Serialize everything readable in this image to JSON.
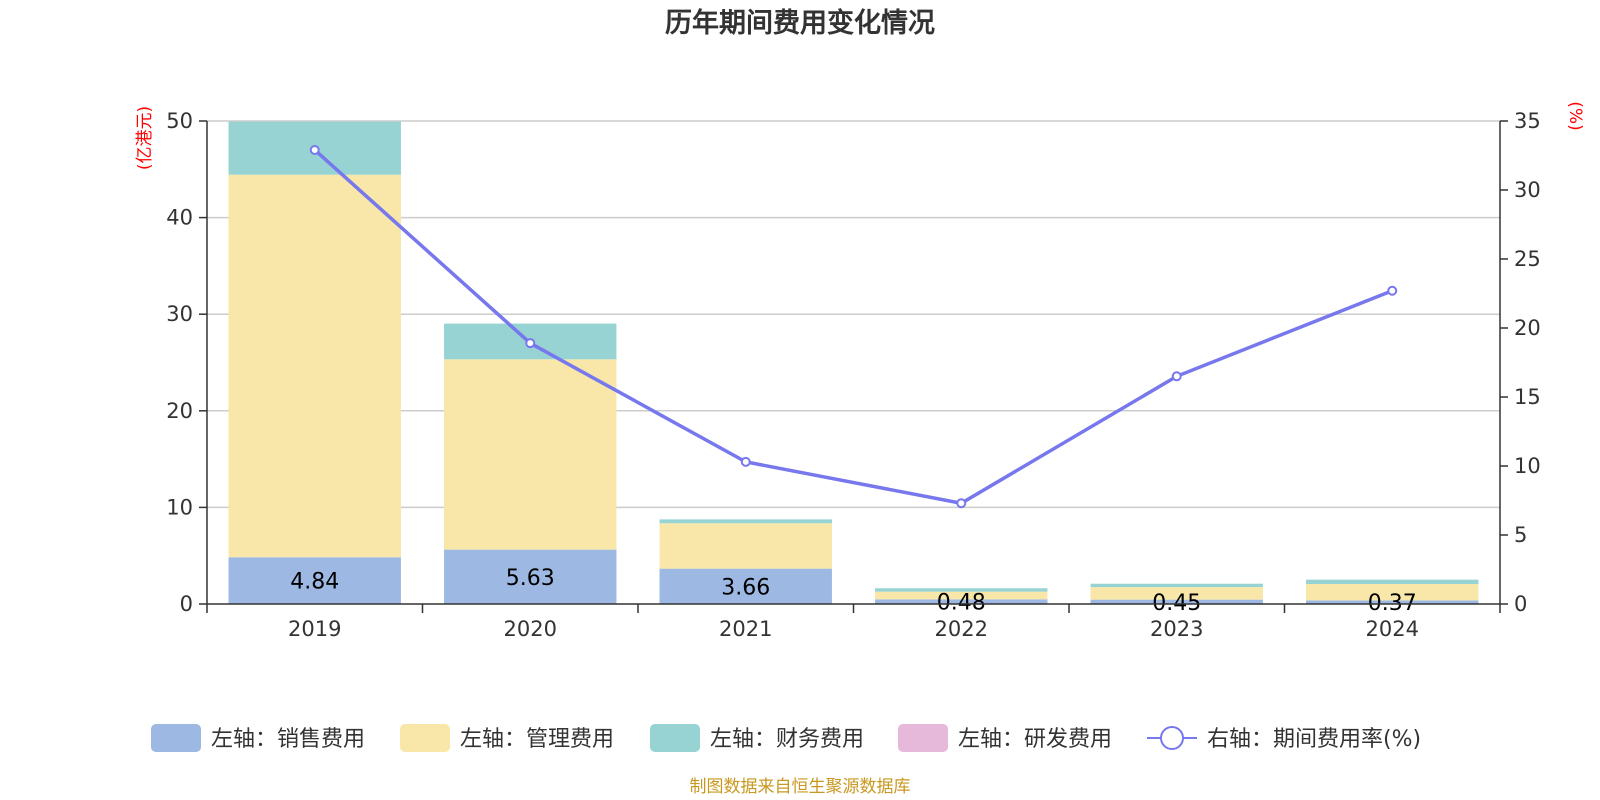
{
  "chart_data": {
    "type": "bar",
    "title": "历年期间费用变化情况",
    "categories": [
      "2019",
      "2020",
      "2021",
      "2022",
      "2023",
      "2024"
    ],
    "left_axis": {
      "unit": "(亿港元)",
      "ylim": [
        0,
        50
      ],
      "ticks": [
        0,
        10,
        20,
        30,
        40,
        50
      ]
    },
    "right_axis": {
      "unit": "(%)",
      "ylim": [
        0,
        35
      ],
      "ticks": [
        0,
        5,
        10,
        15,
        20,
        25,
        30,
        35
      ]
    },
    "series": [
      {
        "name": "左轴：销售费用",
        "type": "bar",
        "axis": "left",
        "color": "#9db8e2",
        "values": [
          4.84,
          5.63,
          3.66,
          0.48,
          0.45,
          0.37
        ],
        "labels": [
          "4.84",
          "5.63",
          "3.66",
          "0.48",
          "0.45",
          "0.37"
        ]
      },
      {
        "name": "左轴：管理费用",
        "type": "bar",
        "axis": "left",
        "color": "#f8e7a9",
        "values": [
          39.6,
          19.7,
          4.7,
          0.8,
          1.3,
          1.7
        ]
      },
      {
        "name": "左轴：财务费用",
        "type": "bar",
        "axis": "left",
        "color": "#98d3d4",
        "values": [
          5.5,
          3.7,
          0.4,
          0.35,
          0.35,
          0.45
        ]
      },
      {
        "name": "左轴：研发费用",
        "type": "bar",
        "axis": "left",
        "color": "#e6b8d9",
        "values": [
          0,
          0,
          0,
          0,
          0,
          0
        ]
      },
      {
        "name": "右轴：期间费用率(%)",
        "type": "line",
        "axis": "right",
        "color": "#7777ee",
        "values": [
          32.9,
          18.9,
          10.3,
          7.3,
          16.5,
          22.7
        ]
      }
    ],
    "grid": true,
    "legend_position": "bottom"
  },
  "source_note": "制图数据来自恒生聚源数据库"
}
